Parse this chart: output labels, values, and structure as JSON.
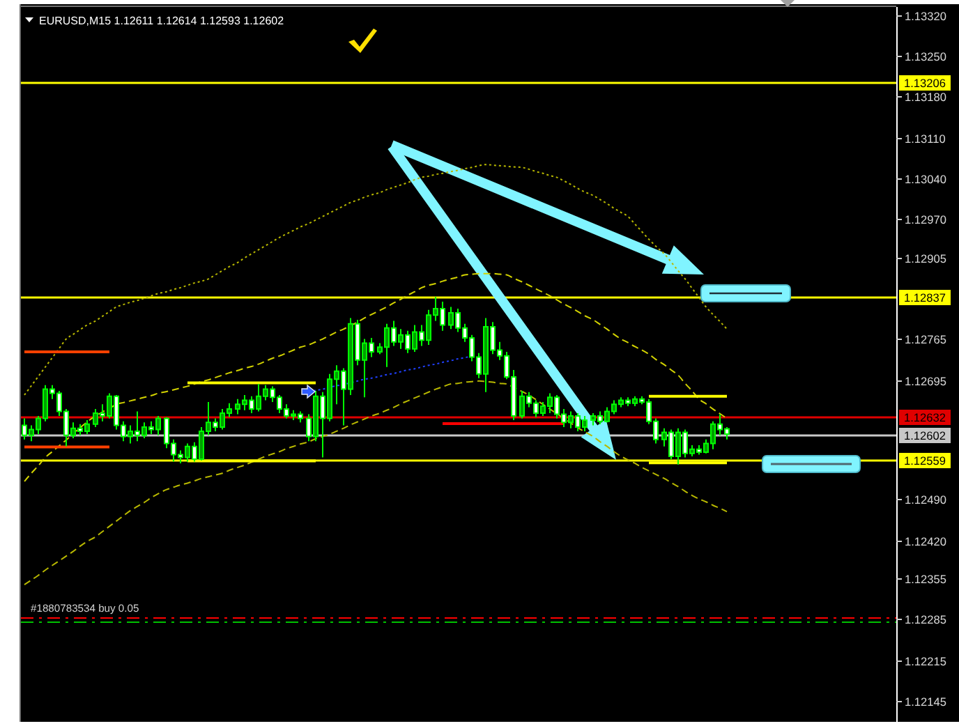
{
  "chart_data": {
    "type": "candlestick",
    "title": "EURUSD,M15 1.12611 1.12614 1.12593 1.12602",
    "color": "#00ff00",
    "categories": [
      null,
      null,
      null,
      null,
      null,
      null,
      null,
      null,
      null,
      null,
      null,
      null,
      null,
      null,
      null,
      null,
      null,
      null,
      null,
      null,
      null,
      null,
      null,
      null,
      null,
      null,
      null,
      null,
      null,
      null,
      null,
      null,
      null,
      null,
      null,
      null,
      null,
      null,
      null,
      null,
      null,
      null,
      null,
      null,
      null,
      null,
      null,
      null,
      null,
      null,
      null,
      null,
      null,
      null,
      null,
      null,
      null,
      null,
      null,
      null,
      null,
      null,
      null,
      null,
      null,
      null,
      null,
      null,
      null,
      null,
      null,
      null,
      null,
      null,
      null,
      null,
      null,
      null,
      null,
      null,
      null,
      null,
      null,
      null,
      null,
      null,
      null,
      null,
      null,
      null,
      null,
      null,
      null,
      null,
      null,
      null,
      null,
      null,
      null,
      null
    ],
    "ohlc": [
      [
        1.12617,
        1.12629,
        1.12593,
        1.126
      ],
      [
        1.126,
        1.12617,
        1.1259,
        1.1261
      ],
      [
        1.1261,
        1.12633,
        1.12602,
        1.12629
      ],
      [
        1.12629,
        1.12686,
        1.12624,
        1.12679
      ],
      [
        1.12679,
        1.12686,
        1.12662,
        1.12672
      ],
      [
        1.12672,
        1.12676,
        1.12633,
        1.12641
      ],
      [
        1.12641,
        1.12645,
        1.12581,
        1.126
      ],
      [
        1.126,
        1.12622,
        1.12595,
        1.12612
      ],
      [
        1.12612,
        1.12619,
        1.126,
        1.12607
      ],
      [
        1.12607,
        1.12626,
        1.12602,
        1.12619
      ],
      [
        1.12619,
        1.12645,
        1.12614,
        1.12638
      ],
      [
        1.12638,
        1.12653,
        1.12624,
        1.12633
      ],
      [
        1.12633,
        1.12672,
        1.12629,
        1.12667
      ],
      [
        1.12667,
        1.12669,
        1.1261,
        1.12617
      ],
      [
        1.12617,
        1.12624,
        1.1259,
        1.12598
      ],
      [
        1.12598,
        1.12617,
        1.12586,
        1.12607
      ],
      [
        1.12607,
        1.12641,
        1.1259,
        1.126
      ],
      [
        1.126,
        1.12622,
        1.12595,
        1.12614
      ],
      [
        1.12614,
        1.12624,
        1.12602,
        1.1261
      ],
      [
        1.1261,
        1.12633,
        1.126,
        1.12629
      ],
      [
        1.12629,
        1.12631,
        1.12578,
        1.12586
      ],
      [
        1.12586,
        1.12593,
        1.12555,
        1.12567
      ],
      [
        1.12567,
        1.12574,
        1.12552,
        1.12562
      ],
      [
        1.12562,
        1.12586,
        1.12555,
        1.12581
      ],
      [
        1.12581,
        1.12588,
        1.12555,
        1.12559
      ],
      [
        1.12559,
        1.12614,
        1.12557,
        1.12607
      ],
      [
        1.12607,
        1.12657,
        1.126,
        1.12622
      ],
      [
        1.12622,
        1.12629,
        1.12607,
        1.12614
      ],
      [
        1.12614,
        1.12645,
        1.1261,
        1.12638
      ],
      [
        1.12638,
        1.12655,
        1.12631,
        1.12645
      ],
      [
        1.12645,
        1.12662,
        1.12636,
        1.12653
      ],
      [
        1.12653,
        1.12669,
        1.12643,
        1.1266
      ],
      [
        1.1266,
        1.12667,
        1.12638,
        1.12645
      ],
      [
        1.12645,
        1.12688,
        1.12641,
        1.12667
      ],
      [
        1.12667,
        1.12686,
        1.1266,
        1.12679
      ],
      [
        1.12679,
        1.12684,
        1.12657,
        1.12665
      ],
      [
        1.12665,
        1.12669,
        1.12638,
        1.12645
      ],
      [
        1.12645,
        1.12653,
        1.12629,
        1.12633
      ],
      [
        1.12633,
        1.12643,
        1.12626,
        1.12636
      ],
      [
        1.12636,
        1.12641,
        1.12622,
        1.12629
      ],
      [
        1.12629,
        1.12636,
        1.1259,
        1.12598
      ],
      [
        1.12598,
        1.12676,
        1.1259,
        1.12667
      ],
      [
        1.12667,
        1.12674,
        1.12562,
        1.12629
      ],
      [
        1.12629,
        1.12705,
        1.12624,
        1.12696
      ],
      [
        1.12696,
        1.1272,
        1.12653,
        1.1271
      ],
      [
        1.1271,
        1.12715,
        1.12617,
        1.12679
      ],
      [
        1.12679,
        1.12801,
        1.12669,
        1.12791
      ],
      [
        1.12791,
        1.12798,
        1.1272,
        1.12729
      ],
      [
        1.12729,
        1.12765,
        1.12665,
        1.12758
      ],
      [
        1.12758,
        1.12767,
        1.12734,
        1.12743
      ],
      [
        1.12743,
        1.12758,
        1.12739,
        1.12751
      ],
      [
        1.12751,
        1.12791,
        1.12717,
        1.12784
      ],
      [
        1.12784,
        1.12796,
        1.12753,
        1.1276
      ],
      [
        1.1276,
        1.12782,
        1.12748,
        1.12772
      ],
      [
        1.12772,
        1.12779,
        1.12741,
        1.12748
      ],
      [
        1.12748,
        1.12789,
        1.12743,
        1.12777
      ],
      [
        1.12777,
        1.12789,
        1.12753,
        1.12763
      ],
      [
        1.12763,
        1.12815,
        1.12755,
        1.12806
      ],
      [
        1.12806,
        1.12837,
        1.12796,
        1.12817
      ],
      [
        1.12817,
        1.12829,
        1.12779,
        1.12789
      ],
      [
        1.12789,
        1.1282,
        1.12782,
        1.1281
      ],
      [
        1.1281,
        1.12817,
        1.12777,
        1.12784
      ],
      [
        1.12784,
        1.12791,
        1.1276,
        1.12767
      ],
      [
        1.12767,
        1.12772,
        1.12727,
        1.12734
      ],
      [
        1.12734,
        1.12741,
        1.12698,
        1.12705
      ],
      [
        1.12705,
        1.12801,
        1.12674,
        1.12786
      ],
      [
        1.12786,
        1.12794,
        1.12739,
        1.12746
      ],
      [
        1.12746,
        1.1276,
        1.12729,
        1.12736
      ],
      [
        1.12736,
        1.12743,
        1.12696,
        1.127
      ],
      [
        1.127,
        1.12712,
        1.12626,
        1.12633
      ],
      [
        1.12633,
        1.12676,
        1.12629,
        1.12667
      ],
      [
        1.12667,
        1.12674,
        1.12648,
        1.12655
      ],
      [
        1.12655,
        1.1266,
        1.12631,
        1.12638
      ],
      [
        1.12638,
        1.12657,
        1.12633,
        1.1265
      ],
      [
        1.1265,
        1.12672,
        1.12638,
        1.12665
      ],
      [
        1.12665,
        1.12669,
        1.12629,
        1.12636
      ],
      [
        1.12636,
        1.12645,
        1.12614,
        1.12622
      ],
      [
        1.12622,
        1.12641,
        1.12612,
        1.12633
      ],
      [
        1.12633,
        1.12638,
        1.12607,
        1.12614
      ],
      [
        1.12614,
        1.12633,
        1.12607,
        1.12626
      ],
      [
        1.12626,
        1.12638,
        1.12617,
        1.12633
      ],
      [
        1.12633,
        1.12641,
        1.12619,
        1.12624
      ],
      [
        1.12624,
        1.12648,
        1.12622,
        1.12641
      ],
      [
        1.12641,
        1.1266,
        1.12636,
        1.12653
      ],
      [
        1.12653,
        1.12665,
        1.12648,
        1.1266
      ],
      [
        1.1266,
        1.12665,
        1.1265,
        1.12655
      ],
      [
        1.12655,
        1.12667,
        1.1265,
        1.12662
      ],
      [
        1.12662,
        1.12667,
        1.12653,
        1.12657
      ],
      [
        1.12657,
        1.12662,
        1.12619,
        1.12624
      ],
      [
        1.12624,
        1.12629,
        1.12586,
        1.12593
      ],
      [
        1.12593,
        1.12612,
        1.12581,
        1.12605
      ],
      [
        1.12605,
        1.1261,
        1.12559,
        1.12564
      ],
      [
        1.12564,
        1.12612,
        1.1255,
        1.12605
      ],
      [
        1.12605,
        1.1261,
        1.12562,
        1.12569
      ],
      [
        1.12569,
        1.12583,
        1.12564,
        1.12576
      ],
      [
        1.12576,
        1.12583,
        1.12567,
        1.12571
      ],
      [
        1.12571,
        1.12593,
        1.12569,
        1.12586
      ],
      [
        1.12586,
        1.12624,
        1.12576,
        1.12619
      ],
      [
        1.12619,
        1.12636,
        1.126,
        1.1261
      ],
      [
        1.12611,
        1.12614,
        1.12593,
        1.12602
      ]
    ],
    "series": [
      {
        "type": "line",
        "color": "#b8b800",
        "line_style": "dotted",
        "values": [
          1.12669,
          1.12685,
          1.12701,
          1.12717,
          1.12733,
          1.12749,
          1.12765,
          1.12773,
          1.12781,
          1.12789,
          1.12796,
          1.12804,
          1.12812,
          1.1282,
          1.12824,
          1.12828,
          1.12831,
          1.12835,
          1.12839,
          1.12843,
          1.12846,
          1.1285,
          1.12853,
          1.12857,
          1.12861,
          1.12864,
          1.12868,
          1.12875,
          1.12882,
          1.12889,
          1.12896,
          1.12904,
          1.12911,
          1.12918,
          1.12925,
          1.12932,
          1.12939,
          1.12945,
          1.12951,
          1.12957,
          1.12963,
          1.12969,
          1.12975,
          1.12981,
          1.12987,
          1.12993,
          1.12999,
          1.13003,
          1.13008,
          1.13012,
          1.13016,
          1.13021,
          1.13025,
          1.13029,
          1.13033,
          1.13038,
          1.13042,
          1.13044,
          1.13047,
          1.13049,
          1.13052,
          1.13054,
          1.13057,
          1.13059,
          1.13062,
          1.13064,
          1.13063,
          1.13062,
          1.13061,
          1.1306,
          1.13059,
          1.13056,
          1.13052,
          1.13049,
          1.13045,
          1.13042,
          1.13036,
          1.1303,
          1.13023,
          1.13017,
          1.13011,
          1.13004,
          1.12997,
          1.12989,
          1.12982,
          1.12975,
          1.12962,
          1.12949,
          1.12936,
          1.12924,
          1.12911,
          1.12897,
          1.12882,
          1.12868,
          1.12852,
          1.12836,
          1.1282,
          1.12807,
          1.12795,
          1.12782
        ]
      },
      {
        "type": "line",
        "color": "#d2d200",
        "line_style": "dashed",
        "values": [
          1.12521,
          1.12535,
          1.12548,
          1.12562,
          1.12572,
          1.12582,
          1.12592,
          1.12603,
          1.12613,
          1.12623,
          1.12633,
          1.1264,
          1.12646,
          1.12653,
          1.12656,
          1.12659,
          1.12662,
          1.12665,
          1.12668,
          1.12672,
          1.12675,
          1.12678,
          1.12681,
          1.12684,
          1.12688,
          1.12692,
          1.12695,
          1.12699,
          1.12703,
          1.12707,
          1.12711,
          1.12715,
          1.12718,
          1.12722,
          1.12727,
          1.12732,
          1.12736,
          1.12741,
          1.12746,
          1.12751,
          1.12755,
          1.1276,
          1.12765,
          1.12771,
          1.12777,
          1.12782,
          1.12788,
          1.12794,
          1.12801,
          1.12807,
          1.12814,
          1.1282,
          1.12827,
          1.12833,
          1.1284,
          1.12846,
          1.12853,
          1.12857,
          1.1286,
          1.12864,
          1.12868,
          1.12871,
          1.12875,
          1.12876,
          1.12877,
          1.12877,
          1.12877,
          1.12876,
          1.12875,
          1.12869,
          1.12863,
          1.12857,
          1.12851,
          1.12845,
          1.12839,
          1.12832,
          1.12825,
          1.12819,
          1.12812,
          1.12805,
          1.12798,
          1.1279,
          1.12782,
          1.12773,
          1.12765,
          1.12759,
          1.12752,
          1.12746,
          1.12739,
          1.1273,
          1.12721,
          1.12712,
          1.12703,
          1.12689,
          1.12676,
          1.12662,
          1.12654,
          1.12645,
          1.12637,
          1.12629
        ]
      },
      {
        "type": "line",
        "color": "#b8b800",
        "line_style": "dashed",
        "values": [
          1.12344,
          1.12352,
          1.1236,
          1.12369,
          1.12377,
          1.12385,
          1.12393,
          1.12401,
          1.1241,
          1.12418,
          1.12426,
          1.12435,
          1.12444,
          1.12453,
          1.12462,
          1.12471,
          1.12478,
          1.12485,
          1.12493,
          1.125,
          1.12507,
          1.12511,
          1.12515,
          1.12518,
          1.12522,
          1.12526,
          1.12529,
          1.12532,
          1.12535,
          1.1254,
          1.12545,
          1.12549,
          1.12554,
          1.12559,
          1.12564,
          1.12568,
          1.12572,
          1.12577,
          1.12581,
          1.12585,
          1.12589,
          1.12594,
          1.12598,
          1.12602,
          1.12607,
          1.12612,
          1.12618,
          1.12623,
          1.12628,
          1.12633,
          1.12638,
          1.12643,
          1.12648,
          1.12654,
          1.12659,
          1.12664,
          1.12669,
          1.12674,
          1.12679,
          1.12683,
          1.12688,
          1.12689,
          1.12691,
          1.12692,
          1.12693,
          1.12692,
          1.12691,
          1.12689,
          1.12688,
          1.12682,
          1.12675,
          1.12669,
          1.12661,
          1.12653,
          1.12645,
          1.12637,
          1.12629,
          1.12621,
          1.12613,
          1.12606,
          1.12598,
          1.12589,
          1.12581,
          1.12572,
          1.12564,
          1.12558,
          1.12552,
          1.12545,
          1.12539,
          1.12533,
          1.12526,
          1.12519,
          1.12512,
          1.12504,
          1.12497,
          1.12491,
          1.12486,
          1.1248,
          1.12475,
          1.12469
        ]
      },
      {
        "type": "line",
        "color": "#ff4000",
        "values": [
          1.12743,
          1.12743,
          1.12743,
          1.12743,
          1.12743,
          1.12743,
          1.12743,
          1.12743,
          1.12743,
          1.12743,
          1.12743,
          1.12743,
          1.12743,
          null,
          null,
          null,
          null,
          null,
          null,
          null,
          null,
          null,
          null,
          null,
          null,
          null,
          null,
          null,
          null,
          null,
          null,
          null,
          null,
          null,
          null,
          null,
          null,
          null,
          null,
          null,
          null,
          null,
          null,
          null,
          null,
          null,
          null,
          null,
          null,
          null,
          null,
          null,
          null,
          null,
          null,
          null,
          null,
          null,
          null,
          null,
          null,
          null,
          null,
          null,
          null,
          null,
          null,
          null,
          null,
          null,
          null,
          null,
          null,
          null,
          null,
          null,
          null,
          null,
          null,
          null,
          null,
          null,
          null,
          null,
          null,
          null,
          null,
          null,
          null,
          null,
          null,
          null,
          null,
          null,
          null,
          null,
          null,
          null,
          null,
          null
        ]
      },
      {
        "type": "line",
        "color": "#ff4000",
        "values": [
          1.1258,
          1.1258,
          1.1258,
          1.1258,
          1.1258,
          1.1258,
          1.1258,
          1.1258,
          1.1258,
          1.1258,
          1.1258,
          1.1258,
          1.1258,
          null,
          null,
          null,
          null,
          null,
          null,
          null,
          null,
          null,
          null,
          null,
          null,
          null,
          null,
          null,
          null,
          null,
          null,
          null,
          null,
          null,
          null,
          null,
          null,
          null,
          null,
          null,
          null,
          null,
          null,
          null,
          null,
          null,
          null,
          null,
          null,
          null,
          null,
          null,
          null,
          null,
          null,
          null,
          null,
          null,
          null,
          null,
          null,
          null,
          null,
          null,
          null,
          null,
          null,
          null,
          null,
          null,
          null,
          null,
          null,
          null,
          null,
          null,
          null,
          null,
          null,
          null,
          null,
          null,
          null,
          null,
          null,
          null,
          null,
          null,
          null,
          null,
          null,
          null,
          null,
          null,
          null,
          null,
          null,
          null,
          null,
          null
        ]
      },
      {
        "type": "line",
        "color": "#ffff00",
        "values": [
          null,
          null,
          null,
          null,
          null,
          null,
          null,
          null,
          null,
          null,
          null,
          null,
          null,
          null,
          null,
          null,
          null,
          null,
          null,
          null,
          null,
          null,
          null,
          1.1269,
          1.1269,
          1.1269,
          1.1269,
          1.1269,
          1.1269,
          1.1269,
          1.1269,
          1.1269,
          1.1269,
          1.1269,
          1.1269,
          1.1269,
          1.1269,
          1.1269,
          1.1269,
          1.1269,
          1.1269,
          1.1269,
          null,
          null,
          null,
          null,
          null,
          null,
          null,
          null,
          null,
          null,
          null,
          null,
          null,
          null,
          null,
          null,
          null,
          null,
          null,
          null,
          null,
          null,
          null,
          null,
          null,
          null,
          null,
          null,
          null,
          null,
          null,
          null,
          null,
          null,
          null,
          null,
          null,
          null,
          null,
          null,
          null,
          null,
          null,
          null,
          null,
          null,
          null,
          null,
          null,
          null,
          null,
          null,
          null,
          null,
          null,
          null,
          null,
          null
        ]
      },
      {
        "type": "line",
        "color": "#ffff00",
        "values": [
          null,
          null,
          null,
          null,
          null,
          null,
          null,
          null,
          null,
          null,
          null,
          null,
          null,
          null,
          null,
          null,
          null,
          null,
          null,
          null,
          null,
          null,
          null,
          1.12556,
          1.12556,
          1.12556,
          1.12556,
          1.12556,
          1.12556,
          1.12556,
          1.12556,
          1.12556,
          1.12556,
          1.12556,
          1.12556,
          1.12556,
          1.12556,
          1.12556,
          1.12556,
          1.12556,
          1.12556,
          1.12556,
          null,
          null,
          null,
          null,
          null,
          null,
          null,
          null,
          null,
          null,
          null,
          null,
          null,
          null,
          null,
          null,
          null,
          null,
          null,
          null,
          null,
          null,
          null,
          null,
          null,
          null,
          null,
          null,
          null,
          null,
          null,
          null,
          null,
          null,
          null,
          null,
          null,
          null,
          null,
          null,
          null,
          null,
          null,
          null,
          null,
          null,
          null,
          null,
          null,
          null,
          null,
          null,
          null,
          null,
          null,
          null,
          null,
          null
        ]
      },
      {
        "type": "line",
        "color": "#ff0000",
        "values": [
          null,
          null,
          null,
          null,
          null,
          null,
          null,
          null,
          null,
          null,
          null,
          null,
          null,
          null,
          null,
          null,
          null,
          null,
          null,
          null,
          null,
          null,
          null,
          null,
          null,
          null,
          null,
          null,
          null,
          null,
          null,
          null,
          null,
          null,
          null,
          null,
          null,
          null,
          null,
          null,
          null,
          null,
          null,
          null,
          null,
          null,
          null,
          null,
          null,
          null,
          null,
          null,
          null,
          null,
          null,
          null,
          null,
          null,
          null,
          1.1262,
          1.1262,
          1.1262,
          1.1262,
          1.1262,
          1.1262,
          1.1262,
          1.1262,
          1.1262,
          1.1262,
          1.1262,
          1.1262,
          1.1262,
          1.1262,
          1.1262,
          1.1262,
          1.1262,
          1.1262,
          null,
          null,
          null,
          null,
          null,
          null,
          null,
          null,
          null,
          null,
          null,
          null,
          null,
          null,
          null,
          null,
          null,
          null,
          null,
          null,
          null,
          null,
          null
        ]
      },
      {
        "type": "line",
        "color": "#ffff00",
        "values": [
          null,
          null,
          null,
          null,
          null,
          null,
          null,
          null,
          null,
          null,
          null,
          null,
          null,
          null,
          null,
          null,
          null,
          null,
          null,
          null,
          null,
          null,
          null,
          null,
          null,
          null,
          null,
          null,
          null,
          null,
          null,
          null,
          null,
          null,
          null,
          null,
          null,
          null,
          null,
          null,
          null,
          null,
          null,
          null,
          null,
          null,
          null,
          null,
          null,
          null,
          null,
          null,
          null,
          null,
          null,
          null,
          null,
          null,
          null,
          null,
          null,
          null,
          null,
          null,
          null,
          null,
          null,
          null,
          null,
          null,
          null,
          null,
          null,
          null,
          null,
          null,
          null,
          null,
          null,
          null,
          null,
          null,
          null,
          null,
          null,
          null,
          null,
          null,
          1.12667,
          1.12667,
          1.12667,
          1.12667,
          1.12667,
          1.12667,
          1.12667,
          1.12667,
          1.12667,
          1.12667,
          1.12667,
          1.12667
        ]
      },
      {
        "type": "line",
        "color": "#ffff00",
        "values": [
          null,
          null,
          null,
          null,
          null,
          null,
          null,
          null,
          null,
          null,
          null,
          null,
          null,
          null,
          null,
          null,
          null,
          null,
          null,
          null,
          null,
          null,
          null,
          null,
          null,
          null,
          null,
          null,
          null,
          null,
          null,
          null,
          null,
          null,
          null,
          null,
          null,
          null,
          null,
          null,
          null,
          null,
          null,
          null,
          null,
          null,
          null,
          null,
          null,
          null,
          null,
          null,
          null,
          null,
          null,
          null,
          null,
          null,
          null,
          null,
          null,
          null,
          null,
          null,
          null,
          null,
          null,
          null,
          null,
          null,
          null,
          null,
          null,
          null,
          null,
          null,
          null,
          null,
          null,
          null,
          null,
          null,
          null,
          null,
          null,
          null,
          null,
          null,
          1.12553,
          1.12553,
          1.12553,
          1.12553,
          1.12553,
          1.12553,
          1.12553,
          1.12553,
          1.12553,
          1.12553,
          1.12553,
          1.12553
        ]
      },
      {
        "type": "line",
        "color": "#2040ff",
        "line_style": "dotted",
        "values": [
          null,
          null,
          null,
          null,
          null,
          null,
          null,
          null,
          null,
          null,
          null,
          null,
          null,
          null,
          null,
          null,
          null,
          null,
          null,
          null,
          null,
          null,
          null,
          null,
          null,
          null,
          null,
          null,
          null,
          null,
          null,
          null,
          null,
          null,
          null,
          null,
          null,
          null,
          null,
          null,
          1.12674,
          1.12677,
          1.12679,
          1.12682,
          1.12685,
          1.12687,
          1.1269,
          1.12693,
          1.12696,
          1.12698,
          1.12701,
          1.12704,
          1.12706,
          1.12709,
          1.12712,
          1.12714,
          1.12717,
          1.1272,
          1.12722,
          1.12725,
          1.12728,
          1.12731,
          1.12733,
          1.12736,
          null,
          null,
          null,
          null,
          null,
          null,
          null,
          null,
          null,
          null,
          null,
          null,
          null,
          null,
          null,
          null,
          null,
          null,
          null,
          null,
          null,
          null,
          null,
          null,
          null,
          null,
          null,
          null,
          null,
          null,
          null,
          null,
          null,
          null,
          null,
          null
        ]
      }
    ],
    "ylim": [
      1.12109,
      1.13334
    ],
    "yticks": [
      {
        "value": 1.1332,
        "label": "1.13320"
      },
      {
        "value": 1.1325,
        "label": "1.13250"
      },
      {
        "value": 1.1318,
        "label": "1.13180"
      },
      {
        "value": 1.1311,
        "label": "1.13110"
      },
      {
        "value": 1.1304,
        "label": "1.13040"
      },
      {
        "value": 1.1297,
        "label": "1.12970"
      },
      1.12905,
      1.12765,
      1.12695,
      {
        "value": 1.1249,
        "label": "1.12490"
      },
      {
        "value": 1.1242,
        "label": "1.12420"
      },
      1.12355,
      1.12285,
      1.12215,
      1.12145
    ],
    "ref_lines": [
      {
        "axis": "y",
        "value": 1.13206,
        "label": "1.13206",
        "color": "#ffff00"
      },
      {
        "axis": "y",
        "value": 1.12837,
        "label": "1.12837",
        "color": "#ffff00"
      },
      {
        "axis": "y",
        "value": 1.12632,
        "label": "1.12632",
        "color": "#e00000"
      },
      {
        "axis": "y",
        "value": 1.12602,
        "label": "1.12602",
        "color": "#c8c8c8"
      },
      {
        "axis": "y",
        "value": 1.12559,
        "label": "1.12559",
        "color": "#ffff00"
      },
      {
        "axis": "y",
        "value": 1.12288,
        "color": "#ff0000",
        "line_style": "dashed"
      },
      {
        "axis": "y",
        "value": 1.12282,
        "color": "#00c000",
        "line_style": "dashed"
      }
    ],
    "annotations": [
      {
        "text": "#1880783534 buy 0.05",
        "y": 1.12288
      }
    ],
    "tick_labels": "y"
  }
}
